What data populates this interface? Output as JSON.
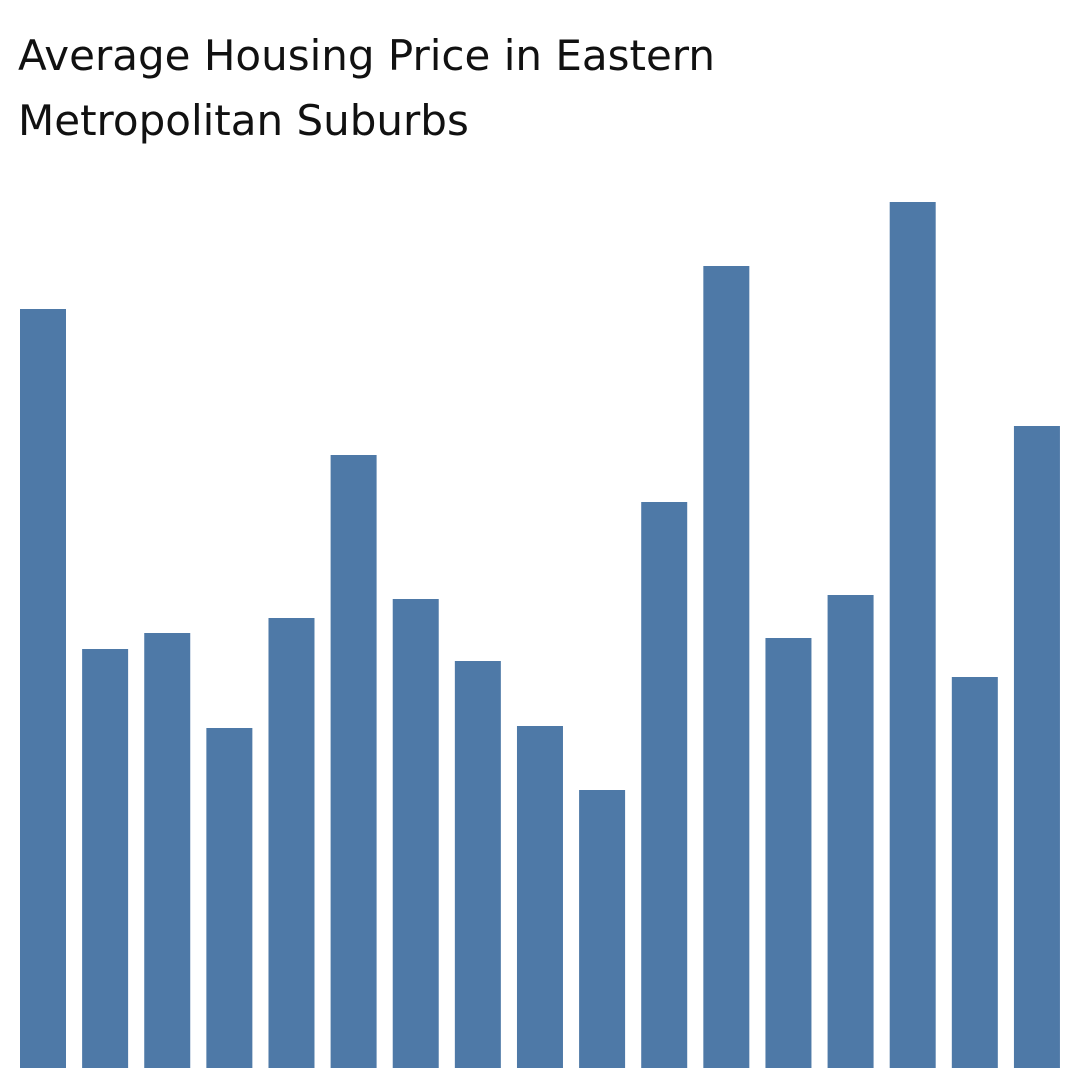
{
  "chart_data": {
    "type": "bar",
    "title": [
      "Average Housing Price in Eastern",
      "Metropolitan Suburbs"
    ],
    "values": [
      759,
      419,
      435,
      340,
      450,
      613,
      469,
      407,
      342,
      278,
      566,
      802,
      430,
      473,
      866,
      391,
      642
    ],
    "color": "#4e79a7",
    "ylim": [
      0,
      866
    ]
  }
}
